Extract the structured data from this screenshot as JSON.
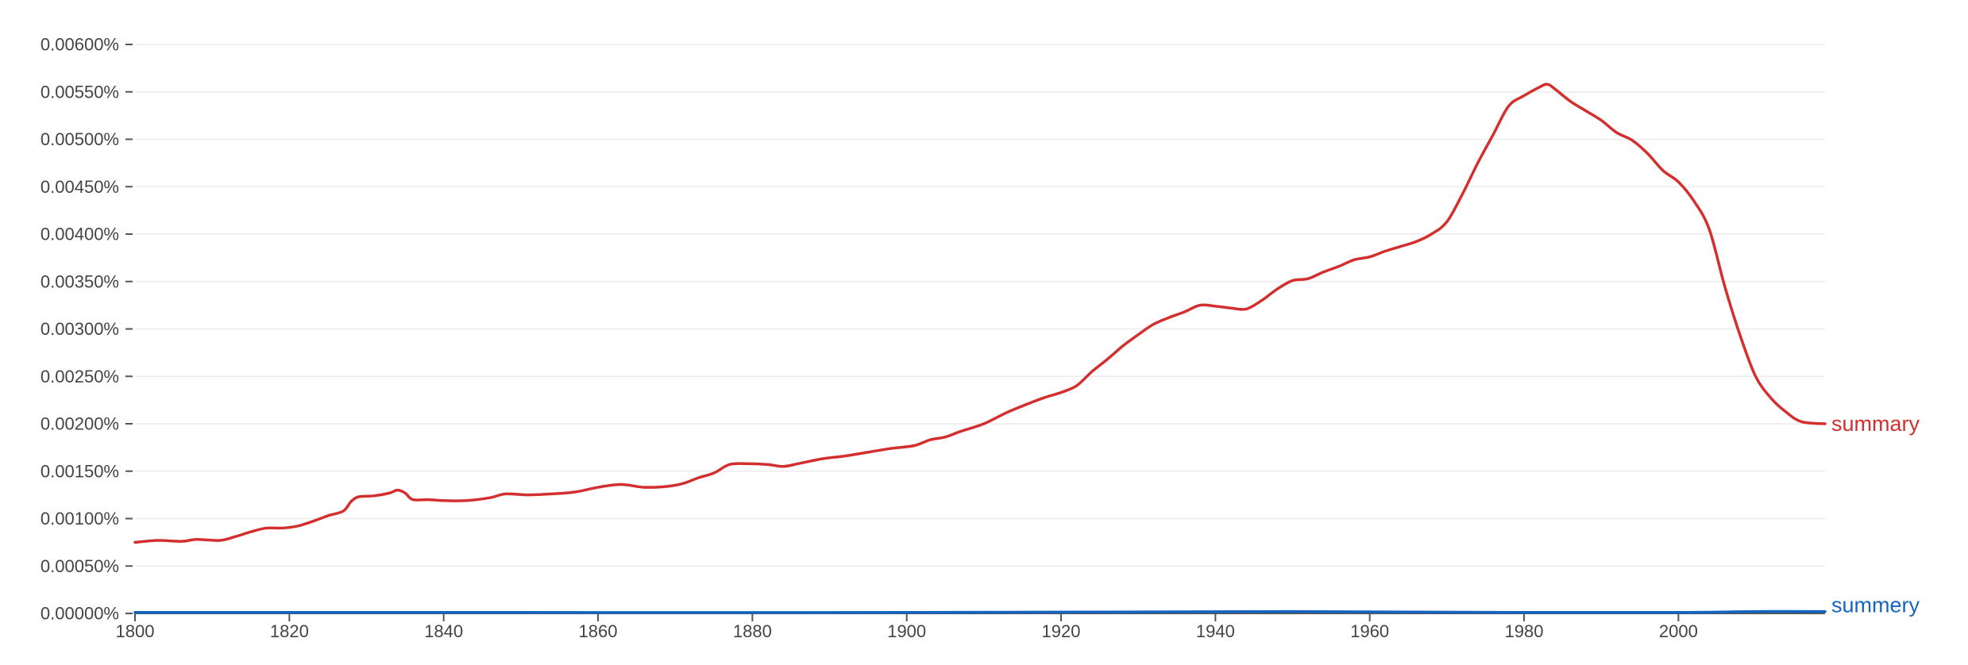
{
  "chart_data": {
    "type": "line",
    "title": "",
    "xlabel": "",
    "ylabel": "",
    "xlim": [
      1800,
      2019
    ],
    "ylim": [
      0,
      0.006
    ],
    "grid": true,
    "y_ticks": [
      0,
      0.0005,
      0.001,
      0.0015,
      0.002,
      0.0025,
      0.003,
      0.0035,
      0.004,
      0.0045,
      0.005,
      0.0055,
      0.006
    ],
    "y_tick_labels": [
      "0.00000%",
      "0.00050%",
      "0.00100%",
      "0.00150%",
      "0.00200%",
      "0.00250%",
      "0.00300%",
      "0.00350%",
      "0.00400%",
      "0.00450%",
      "0.00500%",
      "0.00550%",
      "0.00600%"
    ],
    "x_ticks": [
      1800,
      1820,
      1840,
      1860,
      1880,
      1900,
      1920,
      1940,
      1960,
      1980,
      2000
    ],
    "x_tick_labels": [
      "1800",
      "1820",
      "1840",
      "1860",
      "1880",
      "1900",
      "1920",
      "1940",
      "1960",
      "1980",
      "2000"
    ],
    "series": [
      {
        "name": "summary",
        "color": "#d32f2f",
        "points": [
          [
            1800,
            0.00075
          ],
          [
            1803,
            0.00077
          ],
          [
            1806,
            0.00076
          ],
          [
            1808,
            0.00078
          ],
          [
            1811,
            0.00077
          ],
          [
            1813,
            0.00081
          ],
          [
            1815,
            0.00086
          ],
          [
            1817,
            0.0009
          ],
          [
            1819,
            0.0009
          ],
          [
            1821,
            0.00092
          ],
          [
            1823,
            0.00097
          ],
          [
            1825,
            0.00103
          ],
          [
            1827,
            0.00108
          ],
          [
            1828,
            0.00118
          ],
          [
            1829,
            0.00123
          ],
          [
            1831,
            0.00124
          ],
          [
            1833,
            0.00127
          ],
          [
            1834,
            0.0013
          ],
          [
            1835,
            0.00127
          ],
          [
            1836,
            0.0012
          ],
          [
            1838,
            0.0012
          ],
          [
            1840,
            0.00119
          ],
          [
            1843,
            0.00119
          ],
          [
            1846,
            0.00122
          ],
          [
            1848,
            0.00126
          ],
          [
            1851,
            0.00125
          ],
          [
            1854,
            0.00126
          ],
          [
            1857,
            0.00128
          ],
          [
            1860,
            0.00133
          ],
          [
            1863,
            0.00136
          ],
          [
            1866,
            0.00133
          ],
          [
            1869,
            0.00134
          ],
          [
            1871,
            0.00137
          ],
          [
            1873,
            0.00143
          ],
          [
            1875,
            0.00148
          ],
          [
            1877,
            0.00157
          ],
          [
            1879,
            0.00158
          ],
          [
            1882,
            0.00157
          ],
          [
            1884,
            0.00155
          ],
          [
            1886,
            0.00158
          ],
          [
            1889,
            0.00163
          ],
          [
            1892,
            0.00166
          ],
          [
            1895,
            0.0017
          ],
          [
            1898,
            0.00174
          ],
          [
            1901,
            0.00177
          ],
          [
            1903,
            0.00183
          ],
          [
            1905,
            0.00186
          ],
          [
            1907,
            0.00192
          ],
          [
            1910,
            0.002
          ],
          [
            1913,
            0.00212
          ],
          [
            1916,
            0.00222
          ],
          [
            1918,
            0.00228
          ],
          [
            1920,
            0.00233
          ],
          [
            1922,
            0.0024
          ],
          [
            1924,
            0.00255
          ],
          [
            1926,
            0.00268
          ],
          [
            1928,
            0.00282
          ],
          [
            1930,
            0.00294
          ],
          [
            1932,
            0.00305
          ],
          [
            1934,
            0.00312
          ],
          [
            1936,
            0.00318
          ],
          [
            1938,
            0.00325
          ],
          [
            1940,
            0.00324
          ],
          [
            1942,
            0.00322
          ],
          [
            1944,
            0.00321
          ],
          [
            1946,
            0.0033
          ],
          [
            1948,
            0.00342
          ],
          [
            1950,
            0.00351
          ],
          [
            1952,
            0.00353
          ],
          [
            1954,
            0.0036
          ],
          [
            1956,
            0.00366
          ],
          [
            1958,
            0.00373
          ],
          [
            1960,
            0.00376
          ],
          [
            1962,
            0.00382
          ],
          [
            1964,
            0.00387
          ],
          [
            1966,
            0.00392
          ],
          [
            1968,
            0.004
          ],
          [
            1970,
            0.00413
          ],
          [
            1972,
            0.00442
          ],
          [
            1974,
            0.00475
          ],
          [
            1976,
            0.00505
          ],
          [
            1978,
            0.00535
          ],
          [
            1980,
            0.00546
          ],
          [
            1982,
            0.00555
          ],
          [
            1983,
            0.00558
          ],
          [
            1984,
            0.00553
          ],
          [
            1986,
            0.0054
          ],
          [
            1988,
            0.0053
          ],
          [
            1990,
            0.0052
          ],
          [
            1992,
            0.00507
          ],
          [
            1994,
            0.00499
          ],
          [
            1996,
            0.00485
          ],
          [
            1998,
            0.00467
          ],
          [
            2000,
            0.00455
          ],
          [
            2002,
            0.00435
          ],
          [
            2004,
            0.00405
          ],
          [
            2006,
            0.00345
          ],
          [
            2008,
            0.00293
          ],
          [
            2010,
            0.0025
          ],
          [
            2012,
            0.00227
          ],
          [
            2014,
            0.00212
          ],
          [
            2016,
            0.00202
          ],
          [
            2019,
            0.002
          ]
        ]
      },
      {
        "name": "summery",
        "color": "#1565c0",
        "points": [
          [
            1800,
            1e-05
          ],
          [
            1850,
            1e-05
          ],
          [
            1900,
            1e-05
          ],
          [
            1950,
            2e-05
          ],
          [
            1980,
            1e-05
          ],
          [
            2000,
            1e-05
          ],
          [
            2010,
            2e-05
          ],
          [
            2019,
            2e-05
          ]
        ]
      }
    ]
  }
}
